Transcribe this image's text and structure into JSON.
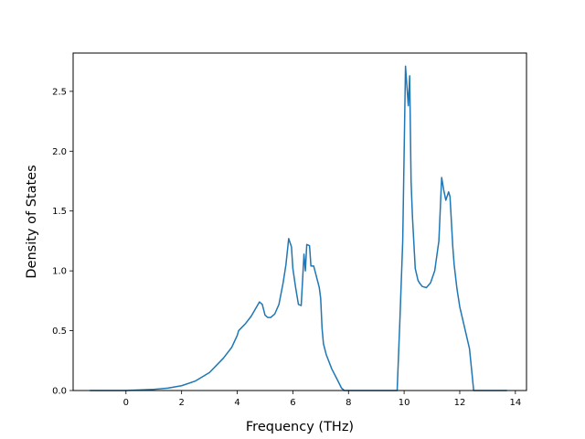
{
  "chart_data": {
    "type": "line",
    "title": "",
    "xlabel": "Frequency (THz)",
    "ylabel": "Density of States",
    "xlim": [
      -1.9,
      14.4
    ],
    "ylim": [
      0,
      2.82
    ],
    "xticks": [
      0,
      2,
      4,
      6,
      8,
      10,
      12,
      14
    ],
    "yticks": [
      0.0,
      0.5,
      1.0,
      1.5,
      2.0,
      2.5
    ],
    "xtick_labels": [
      "0",
      "2",
      "4",
      "6",
      "8",
      "10",
      "12",
      "14"
    ],
    "ytick_labels": [
      "0.0",
      "0.5",
      "1.0",
      "1.5",
      "2.0",
      "2.5"
    ],
    "grid": false,
    "line_color": "#1f77b4",
    "series": [
      {
        "x": [
          -1.3,
          -0.5,
          0.0,
          0.5,
          1.0,
          1.5,
          2.0,
          2.5,
          3.0,
          3.5,
          3.8,
          4.0,
          4.05,
          4.3,
          4.5,
          4.7,
          4.8,
          4.9,
          5.0,
          5.1,
          5.2,
          5.35,
          5.5,
          5.65,
          5.75,
          5.85,
          5.95,
          6.0,
          6.1,
          6.2,
          6.3,
          6.4,
          6.45,
          6.5,
          6.6,
          6.65,
          6.75,
          6.85,
          6.95,
          7.0,
          7.05,
          7.1,
          7.2,
          7.4,
          7.6,
          7.75,
          7.85,
          7.9,
          8.5,
          9.0,
          9.75,
          9.85,
          9.95,
          10.05,
          10.15,
          10.2,
          10.25,
          10.3,
          10.4,
          10.5,
          10.55,
          10.65,
          10.8,
          10.95,
          11.1,
          11.25,
          11.35,
          11.42,
          11.5,
          11.6,
          11.65,
          11.75,
          11.8,
          11.9,
          12.0,
          12.2,
          12.35,
          12.45,
          12.5,
          13.0,
          13.7
        ],
        "y": [
          0.0,
          0.0,
          0.0,
          0.005,
          0.01,
          0.02,
          0.04,
          0.08,
          0.15,
          0.27,
          0.36,
          0.46,
          0.5,
          0.56,
          0.62,
          0.7,
          0.74,
          0.72,
          0.63,
          0.61,
          0.61,
          0.64,
          0.72,
          0.9,
          1.05,
          1.27,
          1.2,
          1.02,
          0.86,
          0.72,
          0.71,
          1.14,
          1.0,
          1.22,
          1.21,
          1.04,
          1.04,
          0.95,
          0.86,
          0.77,
          0.52,
          0.39,
          0.3,
          0.18,
          0.09,
          0.02,
          0.0,
          0.0,
          0.0,
          0.0,
          0.0,
          0.6,
          1.25,
          2.71,
          2.38,
          2.63,
          1.75,
          1.45,
          1.02,
          0.92,
          0.9,
          0.87,
          0.86,
          0.9,
          1.0,
          1.25,
          1.78,
          1.68,
          1.59,
          1.66,
          1.62,
          1.2,
          1.05,
          0.85,
          0.7,
          0.5,
          0.35,
          0.12,
          0.0,
          0.0,
          0.0
        ]
      }
    ]
  }
}
